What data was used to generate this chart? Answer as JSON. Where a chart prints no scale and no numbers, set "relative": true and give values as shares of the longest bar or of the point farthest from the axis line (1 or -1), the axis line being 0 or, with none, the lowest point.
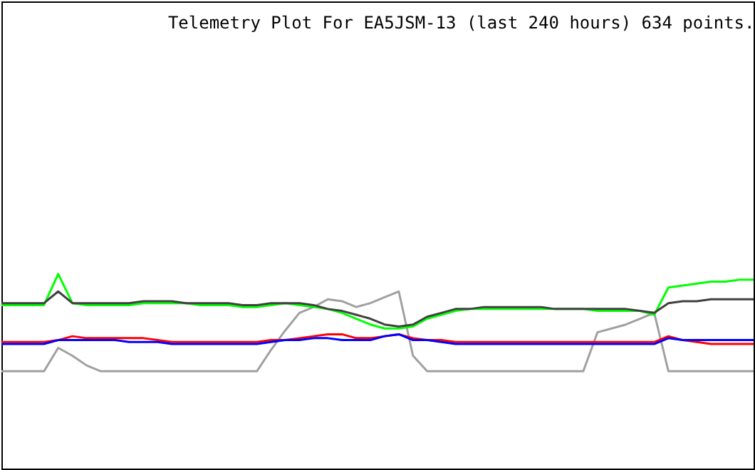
{
  "chart_data": {
    "type": "line",
    "title": "Telemetry Plot For EA5JSM-13 (last 240 hours) 634 points.",
    "relative": true,
    "marker": "none",
    "line_style": "solid",
    "categories": [
      null,
      null,
      null,
      null,
      null,
      null,
      null,
      null,
      null,
      null,
      null,
      null,
      null,
      null,
      null,
      null,
      null,
      null,
      null,
      null,
      null,
      null,
      null,
      null,
      null,
      null,
      null,
      null,
      null,
      null,
      null,
      null,
      null,
      null,
      null,
      null,
      null,
      null,
      null,
      null,
      null,
      null,
      null,
      null,
      null,
      null,
      null,
      null,
      null,
      null,
      null,
      null,
      null,
      null
    ],
    "series": [
      {
        "color": "#a0a0a0",
        "values": [
          0.5,
          0.5,
          0.5,
          0.5,
          0.62,
          0.58,
          0.53,
          0.5,
          0.5,
          0.5,
          0.5,
          0.5,
          0.5,
          0.5,
          0.5,
          0.5,
          0.5,
          0.5,
          0.5,
          0.61,
          0.71,
          0.8,
          0.83,
          0.87,
          0.86,
          0.83,
          0.85,
          0.88,
          0.91,
          0.58,
          0.5,
          0.5,
          0.5,
          0.5,
          0.5,
          0.5,
          0.5,
          0.5,
          0.5,
          0.5,
          0.5,
          0.5,
          0.7,
          0.72,
          0.74,
          0.77,
          0.8,
          0.5,
          0.5,
          0.5,
          0.5,
          0.5,
          0.5,
          0.5
        ]
      },
      {
        "color": "#00ff00",
        "values": [
          0.84,
          0.84,
          0.84,
          0.84,
          1.0,
          0.85,
          0.84,
          0.84,
          0.84,
          0.84,
          0.85,
          0.85,
          0.85,
          0.85,
          0.84,
          0.84,
          0.84,
          0.83,
          0.83,
          0.84,
          0.85,
          0.84,
          0.83,
          0.82,
          0.8,
          0.77,
          0.74,
          0.72,
          0.72,
          0.73,
          0.77,
          0.79,
          0.81,
          0.82,
          0.82,
          0.82,
          0.82,
          0.82,
          0.82,
          0.82,
          0.82,
          0.82,
          0.81,
          0.81,
          0.81,
          0.81,
          0.79,
          0.93,
          0.94,
          0.95,
          0.96,
          0.96,
          0.97,
          0.97
        ]
      },
      {
        "color": "#404040",
        "values": [
          0.85,
          0.85,
          0.85,
          0.85,
          0.91,
          0.85,
          0.85,
          0.85,
          0.85,
          0.85,
          0.86,
          0.86,
          0.86,
          0.85,
          0.85,
          0.85,
          0.85,
          0.84,
          0.84,
          0.85,
          0.85,
          0.85,
          0.84,
          0.82,
          0.81,
          0.79,
          0.77,
          0.74,
          0.73,
          0.74,
          0.78,
          0.8,
          0.82,
          0.82,
          0.83,
          0.83,
          0.83,
          0.83,
          0.83,
          0.82,
          0.82,
          0.82,
          0.82,
          0.82,
          0.82,
          0.81,
          0.8,
          0.85,
          0.86,
          0.86,
          0.87,
          0.87,
          0.87,
          0.87
        ]
      },
      {
        "color": "#ff0000",
        "values": [
          0.65,
          0.65,
          0.65,
          0.65,
          0.66,
          0.68,
          0.67,
          0.67,
          0.67,
          0.67,
          0.67,
          0.66,
          0.65,
          0.65,
          0.65,
          0.65,
          0.65,
          0.65,
          0.65,
          0.66,
          0.66,
          0.67,
          0.68,
          0.69,
          0.69,
          0.67,
          0.67,
          0.68,
          0.69,
          0.67,
          0.66,
          0.66,
          0.65,
          0.65,
          0.65,
          0.65,
          0.65,
          0.65,
          0.65,
          0.65,
          0.65,
          0.65,
          0.65,
          0.65,
          0.65,
          0.65,
          0.65,
          0.68,
          0.66,
          0.65,
          0.64,
          0.64,
          0.64,
          0.64
        ]
      },
      {
        "color": "#0000ff",
        "values": [
          0.64,
          0.64,
          0.64,
          0.64,
          0.66,
          0.66,
          0.66,
          0.66,
          0.66,
          0.65,
          0.65,
          0.65,
          0.64,
          0.64,
          0.64,
          0.64,
          0.64,
          0.64,
          0.64,
          0.65,
          0.66,
          0.66,
          0.67,
          0.67,
          0.66,
          0.66,
          0.66,
          0.68,
          0.69,
          0.66,
          0.66,
          0.65,
          0.64,
          0.64,
          0.64,
          0.64,
          0.64,
          0.64,
          0.64,
          0.64,
          0.64,
          0.64,
          0.64,
          0.64,
          0.64,
          0.64,
          0.64,
          0.67,
          0.66,
          0.66,
          0.66,
          0.66,
          0.66,
          0.66
        ]
      }
    ]
  }
}
